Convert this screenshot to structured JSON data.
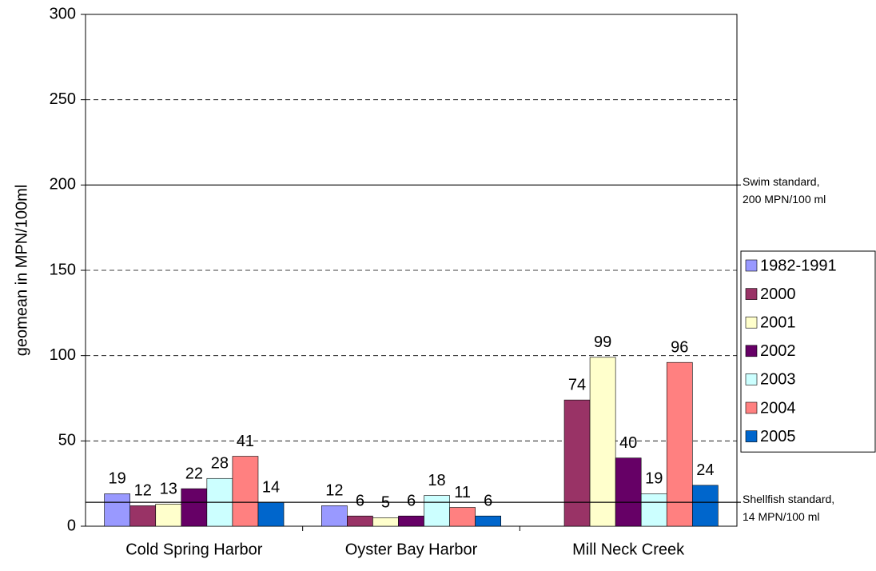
{
  "chart_data": {
    "type": "bar",
    "y_label": "geomean in MPN/100ml",
    "categories": [
      "Cold Spring Harbor",
      "Oyster Bay Harbor",
      "Mill Neck Creek"
    ],
    "series": [
      {
        "name": "1982-1991",
        "color": "#9999ff",
        "values": [
          19,
          12,
          null
        ]
      },
      {
        "name": "2000",
        "color": "#993366",
        "values": [
          12,
          6,
          74
        ]
      },
      {
        "name": "2001",
        "color": "#ffffcc",
        "values": [
          13,
          5,
          99
        ]
      },
      {
        "name": "2002",
        "color": "#660066",
        "values": [
          22,
          6,
          40
        ]
      },
      {
        "name": "2003",
        "color": "#ccffff",
        "values": [
          28,
          18,
          19
        ]
      },
      {
        "name": "2004",
        "color": "#ff8080",
        "values": [
          41,
          11,
          96
        ]
      },
      {
        "name": "2005",
        "color": "#0066cc",
        "values": [
          14,
          6,
          24
        ]
      }
    ],
    "ylim": [
      0,
      300
    ],
    "yticks": [
      0,
      50,
      100,
      150,
      200,
      250,
      300
    ],
    "grid": true,
    "reference_lines": [
      {
        "value": 200,
        "label": [
          "Swim standard,",
          "200 MPN/100 ml"
        ]
      },
      {
        "value": 14,
        "label": [
          "Shellfish standard,",
          "14 MPN/100 ml"
        ]
      }
    ],
    "legend": "right"
  }
}
